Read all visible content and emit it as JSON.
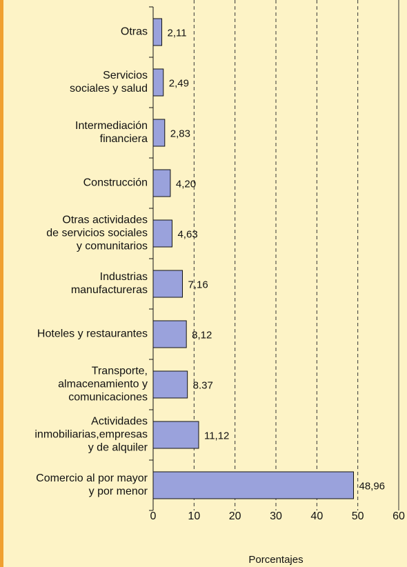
{
  "chart_data": {
    "type": "bar",
    "orientation": "horizontal",
    "categories": [
      [
        "Otras"
      ],
      [
        "Servicios",
        "sociales y salud"
      ],
      [
        "Intermediación",
        "financiera"
      ],
      [
        "Construcción"
      ],
      [
        "Otras actividades",
        "de servicios sociales",
        "y comunitarios"
      ],
      [
        "Industrias",
        "manufactureras"
      ],
      [
        "Hoteles y restaurantes"
      ],
      [
        "Transporte,",
        "almacenamiento y",
        "comunicaciones"
      ],
      [
        "Actividades",
        "inmobiliarias,empresas",
        "y de alquiler"
      ],
      [
        "Comercio al por mayor",
        "y por menor"
      ]
    ],
    "values": [
      2.11,
      2.49,
      2.83,
      4.2,
      4.63,
      7.16,
      8.12,
      8.37,
      11.12,
      48.96
    ],
    "value_labels": [
      "2,11",
      "2,49",
      "2,83",
      "4,20",
      "4,63",
      "7,16",
      "8,12",
      "8.37",
      "11,12",
      "48,96"
    ],
    "color": "#9aa2dc",
    "xlabel": "Porcentajes",
    "xlim": [
      0,
      60
    ],
    "xticks": [
      0,
      10,
      20,
      30,
      40,
      50,
      60
    ],
    "grid": true
  }
}
